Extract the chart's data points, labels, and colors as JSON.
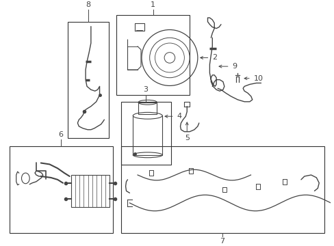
{
  "bg_color": "#ffffff",
  "line_color": "#444444",
  "box_color": "#333333",
  "label_color": "#000000",
  "fig_width": 4.89,
  "fig_height": 3.6,
  "dpi": 100
}
